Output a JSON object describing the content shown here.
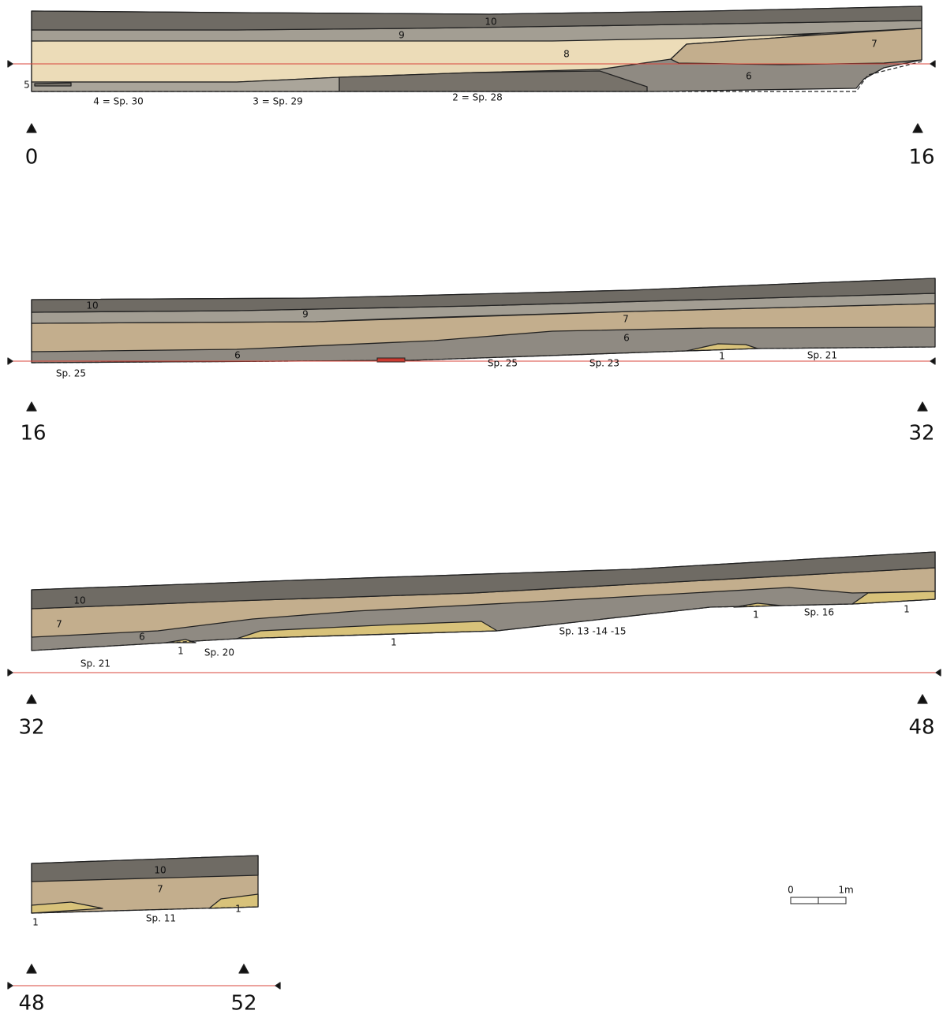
{
  "sections": [
    {
      "layers": [
        "10",
        "9",
        "8",
        "7",
        "6",
        "5"
      ],
      "features": [
        "4 = Sp. 30",
        "3 = Sp. 29",
        "2 = Sp. 28"
      ],
      "start": "0",
      "end": "16"
    },
    {
      "layers": [
        "10",
        "9",
        "7",
        "6",
        "6",
        "1"
      ],
      "features": [
        "Sp. 25",
        "Sp. 25",
        "Sp. 23",
        "Sp. 21"
      ],
      "start": "16",
      "end": "32"
    },
    {
      "layers": [
        "10",
        "7",
        "6",
        "1",
        "1",
        "1",
        "1"
      ],
      "features": [
        "Sp. 21",
        "Sp. 20",
        "Sp. 13 -14 -15",
        "Sp. 16"
      ],
      "start": "32",
      "end": "48"
    },
    {
      "layers": [
        "10",
        "7",
        "1",
        "1"
      ],
      "features": [
        "Sp. 11"
      ],
      "start": "48",
      "end": "52"
    }
  ],
  "scale": {
    "start": "0",
    "end": "1m"
  }
}
